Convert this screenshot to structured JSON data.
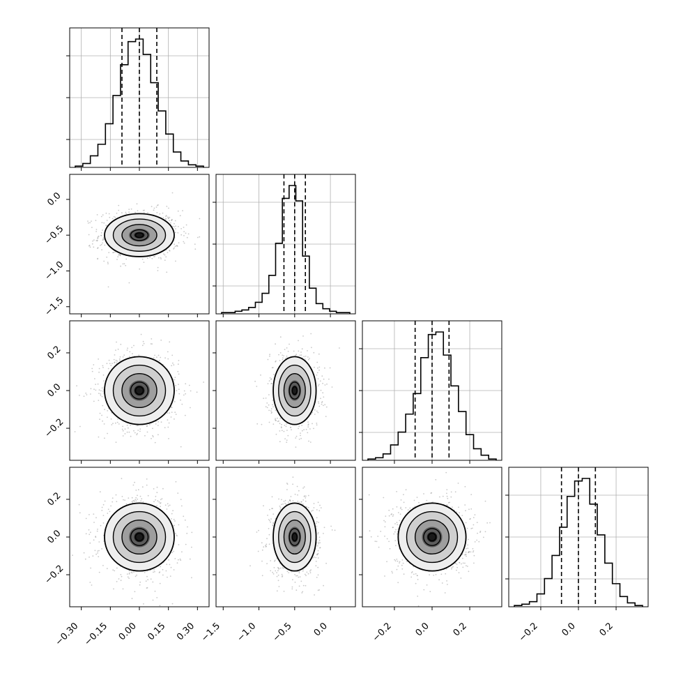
{
  "chart_data": {
    "type": "corner",
    "parameters": [
      {
        "range": [
          -0.36,
          0.36
        ],
        "ticks": [
          -0.3,
          -0.15,
          0.0,
          0.15,
          0.3
        ],
        "tick_labels": [
          "−0.30",
          "−0.15",
          "0.00",
          "0.15",
          "0.30"
        ],
        "quantiles": [
          -0.09,
          0.0,
          0.09
        ],
        "sigma": 0.09,
        "mean": 0.0
      },
      {
        "range": [
          -1.6,
          0.35
        ],
        "ticks": [
          -1.5,
          -1.0,
          -0.5,
          0.0
        ],
        "tick_labels": [
          "−1.5",
          "−1.0",
          "−0.5",
          "0.0"
        ],
        "quantiles": [
          -0.65,
          -0.5,
          -0.35
        ],
        "sigma": 0.15,
        "mean": -0.5
      },
      {
        "range": [
          -0.37,
          0.37
        ],
        "ticks": [
          -0.2,
          0.0,
          0.2
        ],
        "tick_labels": [
          "−0.2",
          "0.0",
          "0.2"
        ],
        "quantiles": [
          -0.09,
          0.0,
          0.09
        ],
        "sigma": 0.09,
        "mean": 0.0
      },
      {
        "range": [
          -0.37,
          0.37
        ],
        "ticks": [
          -0.2,
          0.0,
          0.2
        ],
        "tick_labels": [
          "−0.2",
          "0.0",
          "0.2"
        ],
        "quantiles": [
          -0.09,
          0.0,
          0.09
        ],
        "sigma": 0.09,
        "mean": 0.0
      }
    ],
    "histograms": [
      [
        1,
        3,
        9,
        18,
        34,
        56,
        80,
        98,
        100,
        88,
        66,
        44,
        26,
        12,
        5,
        2,
        1
      ],
      [
        1,
        1,
        2,
        3,
        5,
        9,
        16,
        30,
        55,
        90,
        100,
        88,
        45,
        20,
        8,
        4,
        2,
        1,
        1
      ],
      [
        1,
        2,
        5,
        12,
        22,
        36,
        52,
        80,
        98,
        100,
        82,
        58,
        38,
        20,
        9,
        4,
        1
      ],
      [
        1,
        2,
        4,
        10,
        22,
        40,
        62,
        86,
        98,
        100,
        80,
        56,
        34,
        18,
        8,
        3,
        1
      ]
    ],
    "correlations": [
      [
        0,
        1,
        "0.0"
      ],
      [
        0,
        2,
        "0.0"
      ],
      [
        1,
        2,
        "0.0"
      ],
      [
        0,
        3,
        "0.0"
      ],
      [
        1,
        3,
        "0.0"
      ],
      [
        2,
        3,
        "0.0"
      ]
    ],
    "grid": true,
    "colors": {
      "hist": "#000000",
      "points": "#9a9a9a",
      "contour": "#000000",
      "gridline": "#b0b0b0"
    }
  }
}
